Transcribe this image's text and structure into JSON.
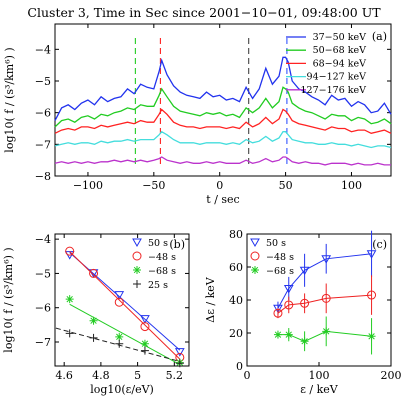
{
  "title": "Cluster 3, Time in Sec since 2001−10−01, 09:48:00 UT",
  "chart_data": [
    {
      "id": "a",
      "panel_label": "(a)",
      "type": "line",
      "xlabel": "t / sec",
      "ylabel": "log10( f / (s³/km⁶) )",
      "xlim": [
        -125,
        130
      ],
      "ylim": [
        -8,
        -3.2
      ],
      "xticks": [
        -100,
        -50,
        0,
        50,
        100
      ],
      "yticks": [
        -8,
        -7,
        -6,
        -5,
        -4
      ],
      "markers": [
        {
          "x": -64,
          "color": "#22cc22"
        },
        {
          "x": -45,
          "color": "#ff2222"
        },
        {
          "x": 22,
          "color": "#444444"
        },
        {
          "x": 51,
          "color": "#3355ff"
        }
      ],
      "x": [
        -125,
        -120,
        -115,
        -110,
        -105,
        -100,
        -95,
        -90,
        -85,
        -80,
        -75,
        -70,
        -65,
        -60,
        -55,
        -50,
        -46,
        -44,
        -40,
        -35,
        -30,
        -25,
        -20,
        -15,
        -10,
        -5,
        0,
        5,
        10,
        15,
        20,
        25,
        30,
        35,
        40,
        45,
        48,
        50,
        52,
        55,
        60,
        65,
        70,
        75,
        80,
        85,
        90,
        95,
        100,
        105,
        110,
        115,
        120,
        125,
        130
      ],
      "series": [
        {
          "name": "37−50 keV",
          "color": "#2233ee",
          "values": [
            -6.25,
            -5.85,
            -5.75,
            -5.9,
            -5.7,
            -5.6,
            -5.75,
            -5.5,
            -5.65,
            -5.55,
            -5.5,
            -5.25,
            -5.4,
            -5.1,
            -5.2,
            -5.25,
            -4.7,
            -4.35,
            -4.8,
            -5.15,
            -5.35,
            -5.45,
            -5.5,
            -5.55,
            -5.35,
            -5.5,
            -5.45,
            -5.6,
            -5.55,
            -5.65,
            -5.2,
            -5.55,
            -5.25,
            -4.6,
            -5.1,
            -4.85,
            -4.25,
            -4.25,
            -4.4,
            -5.0,
            -5.25,
            -5.35,
            -5.5,
            -5.6,
            -5.75,
            -5.45,
            -5.6,
            -5.55,
            -5.8,
            -5.65,
            -5.75,
            -6.0,
            -5.95,
            -5.7,
            -6.05
          ]
        },
        {
          "name": "50−68 keV",
          "color": "#22cc22",
          "values": [
            -6.45,
            -6.25,
            -6.2,
            -6.3,
            -6.15,
            -6.1,
            -6.2,
            -6.05,
            -6.1,
            -6.0,
            -5.95,
            -5.85,
            -5.9,
            -5.75,
            -5.8,
            -5.8,
            -5.45,
            -5.25,
            -5.5,
            -5.8,
            -5.95,
            -6.0,
            -6.05,
            -6.1,
            -6.0,
            -6.05,
            -6.0,
            -6.1,
            -6.05,
            -6.15,
            -5.85,
            -6.0,
            -5.85,
            -5.55,
            -5.85,
            -5.65,
            -5.2,
            -5.25,
            -5.35,
            -5.7,
            -5.85,
            -5.95,
            -6.0,
            -6.1,
            -6.2,
            -6.05,
            -6.1,
            -6.1,
            -6.25,
            -6.15,
            -6.2,
            -6.35,
            -6.3,
            -6.2,
            -6.35
          ]
        },
        {
          "name": "68−94 keV",
          "color": "#ff2222",
          "values": [
            -6.65,
            -6.55,
            -6.5,
            -6.55,
            -6.45,
            -6.45,
            -6.5,
            -6.4,
            -6.45,
            -6.4,
            -6.35,
            -6.3,
            -6.35,
            -6.25,
            -6.3,
            -6.3,
            -6.05,
            -5.9,
            -6.05,
            -6.3,
            -6.4,
            -6.45,
            -6.45,
            -6.5,
            -6.45,
            -6.45,
            -6.45,
            -6.5,
            -6.45,
            -6.5,
            -6.3,
            -6.45,
            -6.35,
            -6.15,
            -6.35,
            -6.2,
            -5.9,
            -5.95,
            -6.05,
            -6.25,
            -6.35,
            -6.4,
            -6.45,
            -6.5,
            -6.55,
            -6.45,
            -6.5,
            -6.5,
            -6.6,
            -6.55,
            -6.55,
            -6.65,
            -6.6,
            -6.55,
            -6.65
          ]
        },
        {
          "name": "94−127 keV",
          "color": "#44dddd",
          "values": [
            -7.05,
            -7.0,
            -6.95,
            -7.0,
            -6.95,
            -6.95,
            -7.0,
            -6.9,
            -6.95,
            -6.9,
            -6.9,
            -6.85,
            -6.9,
            -6.85,
            -6.85,
            -6.85,
            -6.7,
            -6.6,
            -6.7,
            -6.85,
            -6.95,
            -6.95,
            -6.95,
            -7.0,
            -6.95,
            -6.95,
            -6.95,
            -7.0,
            -6.95,
            -7.0,
            -6.85,
            -6.95,
            -6.9,
            -6.75,
            -6.9,
            -6.8,
            -6.6,
            -6.6,
            -6.7,
            -6.85,
            -6.9,
            -6.95,
            -6.95,
            -7.0,
            -7.0,
            -6.95,
            -7.0,
            -7.0,
            -7.05,
            -7.0,
            -7.05,
            -7.1,
            -7.05,
            -7.05,
            -7.1
          ]
        },
        {
          "name": "127−176 keV",
          "color": "#bb33cc",
          "values": [
            -7.6,
            -7.55,
            -7.6,
            -7.55,
            -7.6,
            -7.55,
            -7.6,
            -7.55,
            -7.55,
            -7.5,
            -7.55,
            -7.5,
            -7.55,
            -7.5,
            -7.55,
            -7.5,
            -7.45,
            -7.4,
            -7.5,
            -7.55,
            -7.6,
            -7.55,
            -7.6,
            -7.6,
            -7.55,
            -7.6,
            -7.55,
            -7.6,
            -7.6,
            -7.6,
            -7.5,
            -7.6,
            -7.55,
            -7.45,
            -7.55,
            -7.5,
            -7.4,
            -7.4,
            -7.45,
            -7.55,
            -7.6,
            -7.55,
            -7.6,
            -7.6,
            -7.65,
            -7.6,
            -7.6,
            -7.6,
            -7.65,
            -7.6,
            -7.65,
            -7.65,
            -7.6,
            -7.65,
            -7.65
          ]
        }
      ]
    },
    {
      "id": "b",
      "panel_label": "(b)",
      "type": "scatter",
      "xlabel": "log10(ε/eV)",
      "ylabel": "log10( f / (s³/km⁶) )",
      "xlim": [
        4.55,
        5.28
      ],
      "ylim": [
        -7.7,
        -3.85
      ],
      "xticks": [
        4.6,
        4.8,
        5.0,
        5.2
      ],
      "yticks": [
        -7,
        -6,
        -5,
        -4
      ],
      "series": [
        {
          "name": "50 s",
          "marker": "triangle",
          "color": "#2233ee",
          "fit": true,
          "x": [
            4.63,
            4.76,
            4.9,
            5.04,
            5.23
          ],
          "y": [
            -4.45,
            -4.98,
            -5.62,
            -6.32,
            -7.28
          ]
        },
        {
          "name": "−48 s",
          "marker": "circle",
          "color": "#ee2222",
          "fit": true,
          "x": [
            4.63,
            4.76,
            4.9,
            5.04,
            5.23
          ],
          "y": [
            -4.35,
            -5.0,
            -5.84,
            -6.55,
            -7.45
          ]
        },
        {
          "name": "−68 s",
          "marker": "star",
          "color": "#22cc22",
          "fit": true,
          "x": [
            4.63,
            4.76,
            4.9,
            5.04,
            5.23
          ],
          "y": [
            -5.75,
            -6.38,
            -6.85,
            -7.05,
            -7.6
          ]
        },
        {
          "name": "25 s",
          "marker": "plus",
          "color": "#222222",
          "fit": true,
          "x": [
            4.63,
            4.76,
            4.9,
            5.04,
            5.23
          ],
          "y": [
            -6.75,
            -6.88,
            -7.05,
            -7.25,
            -7.62
          ]
        }
      ]
    },
    {
      "id": "c",
      "panel_label": "(c)",
      "type": "scatter",
      "xlabel": "ε / keV",
      "ylabel": "Δε / keV",
      "xlim": [
        0,
        200
      ],
      "ylim": [
        0,
        80
      ],
      "xticks": [
        0,
        100,
        200
      ],
      "yticks": [
        0,
        20,
        40,
        60,
        80
      ],
      "series": [
        {
          "name": "50 s",
          "marker": "triangle",
          "color": "#2233ee",
          "x": [
            43,
            58,
            80,
            110,
            173
          ],
          "y": [
            35,
            47,
            58,
            65,
            68
          ],
          "err": [
            4,
            7,
            10,
            9,
            14
          ]
        },
        {
          "name": "−48 s",
          "marker": "circle",
          "color": "#ee2222",
          "x": [
            43,
            58,
            80,
            110,
            173
          ],
          "y": [
            32,
            37,
            38,
            41,
            43
          ],
          "err": [
            3,
            5,
            6,
            9,
            12
          ]
        },
        {
          "name": "−68 s",
          "marker": "star",
          "color": "#22cc22",
          "x": [
            43,
            58,
            80,
            110,
            173
          ],
          "y": [
            19,
            19,
            15,
            21,
            18
          ],
          "err": [
            2,
            4,
            6,
            9,
            11
          ]
        }
      ]
    }
  ]
}
